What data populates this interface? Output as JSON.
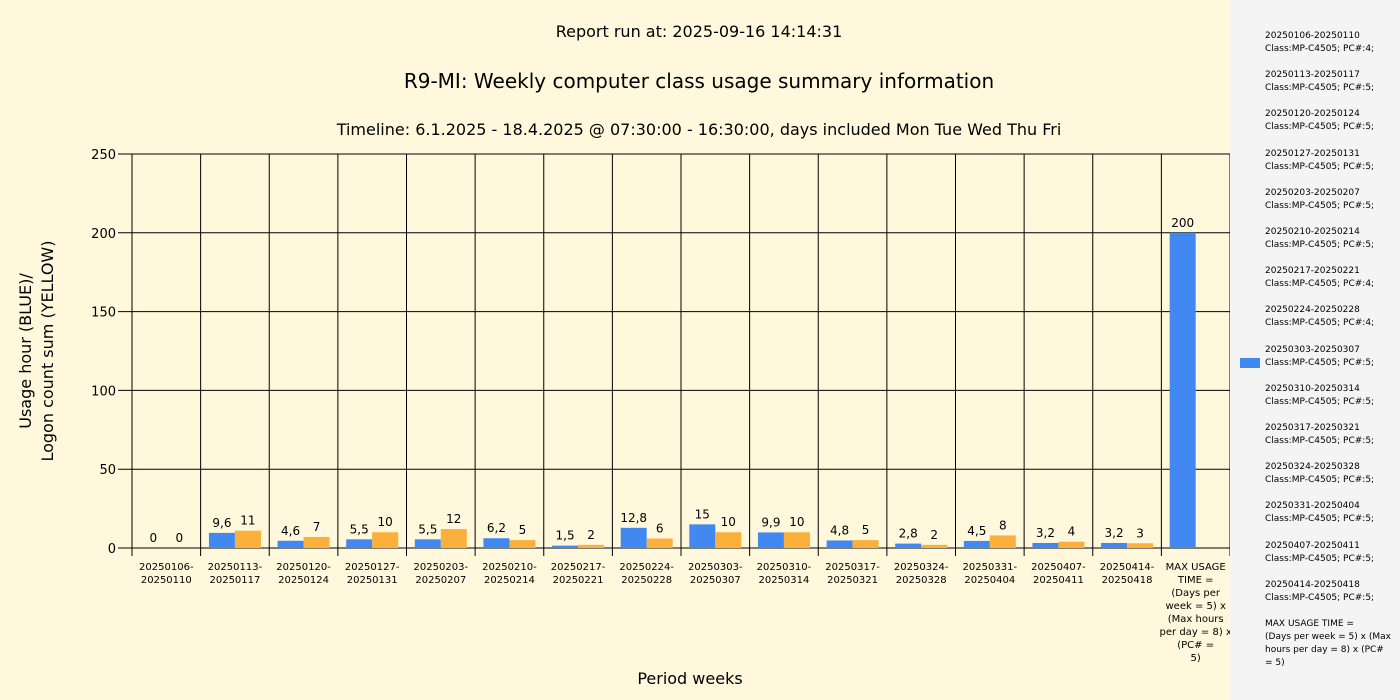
{
  "header": {
    "report_run": "Report run at: 2025-09-16 14:14:31",
    "timeline": "Timeline:  6.1.2025  - 18.4.2025  @  07:30:00 -  16:30:00, days included Mon Tue Wed Thu Fri"
  },
  "colors": {
    "blue": "#4189f0",
    "yellow": "#fbb03b",
    "background": "#fff8dc",
    "legend_bg": "#f4f4f4"
  },
  "chart_data": {
    "type": "bar",
    "title": "R9-MI: Weekly computer class usage summary information",
    "xlabel": "Period weeks",
    "ylabel": "Usage hour (BLUE)/\nLogon count sum (YELLOW)",
    "ylim": [
      0,
      250
    ],
    "yticks": [
      0,
      50,
      100,
      150,
      200,
      250
    ],
    "grid": true,
    "legend_position": "right",
    "categories": [
      "20250106-\n20250110",
      "20250113-\n20250117",
      "20250120-\n20250124",
      "20250127-\n20250131",
      "20250203-\n20250207",
      "20250210-\n20250214",
      "20250217-\n20250221",
      "20250224-\n20250228",
      "20250303-\n20250307",
      "20250310-\n20250314",
      "20250317-\n20250321",
      "20250324-\n20250328",
      "20250331-\n20250404",
      "20250407-\n20250411",
      "20250414-\n20250418",
      "MAX USAGE\nTIME =\n(Days per\nweek = 5) x\n(Max hours\nper day = 8) x\n(PC# =\n5)"
    ],
    "series": [
      {
        "color": "#4189f0",
        "values": [
          0,
          9.6,
          4.6,
          5.5,
          5.5,
          6.2,
          1.5,
          12.8,
          15,
          9.9,
          4.8,
          2.8,
          4.5,
          3.2,
          3.2,
          200
        ],
        "labels": [
          "0",
          "9,6",
          "4,6",
          "5,5",
          "5,5",
          "6,2",
          "1,5",
          "12,8",
          "15",
          "9,9",
          "4,8",
          "2,8",
          "4,5",
          "3,2",
          "3,2",
          "200"
        ]
      },
      {
        "color": "#fbb03b",
        "values": [
          0,
          11,
          7,
          10,
          12,
          5,
          2,
          6,
          10,
          10,
          5,
          2,
          8,
          4,
          3,
          null
        ],
        "labels": [
          "0",
          "11",
          "7",
          "10",
          "12",
          "5",
          "2",
          "6",
          "10",
          "10",
          "5",
          "2",
          "8",
          "4",
          "3",
          ""
        ]
      }
    ]
  },
  "legend": {
    "highlighted_index": 8,
    "items": [
      {
        "line1": "20250106-20250110",
        "line2": "Class:MP-C4505; PC#:4;"
      },
      {
        "line1": "20250113-20250117",
        "line2": "Class:MP-C4505; PC#:5;"
      },
      {
        "line1": "20250120-20250124",
        "line2": "Class:MP-C4505; PC#:5;"
      },
      {
        "line1": "20250127-20250131",
        "line2": "Class:MP-C4505; PC#:5;"
      },
      {
        "line1": "20250203-20250207",
        "line2": "Class:MP-C4505; PC#:5;"
      },
      {
        "line1": "20250210-20250214",
        "line2": "Class:MP-C4505; PC#:5;"
      },
      {
        "line1": "20250217-20250221",
        "line2": "Class:MP-C4505; PC#:4;"
      },
      {
        "line1": "20250224-20250228",
        "line2": "Class:MP-C4505; PC#:4;"
      },
      {
        "line1": "20250303-20250307",
        "line2": "Class:MP-C4505; PC#:5;"
      },
      {
        "line1": "20250310-20250314",
        "line2": "Class:MP-C4505; PC#:5;"
      },
      {
        "line1": "20250317-20250321",
        "line2": "Class:MP-C4505; PC#:5;"
      },
      {
        "line1": "20250324-20250328",
        "line2": "Class:MP-C4505; PC#:5;"
      },
      {
        "line1": "20250331-20250404",
        "line2": "Class:MP-C4505; PC#:5;"
      },
      {
        "line1": "20250407-20250411",
        "line2": "Class:MP-C4505; PC#:5;"
      },
      {
        "line1": "20250414-20250418",
        "line2": "Class:MP-C4505; PC#:5;"
      }
    ],
    "note": "MAX USAGE TIME =\n (Days per week = 5) x (Max\nhours per day = 8) x (PC#\n= 5)"
  }
}
